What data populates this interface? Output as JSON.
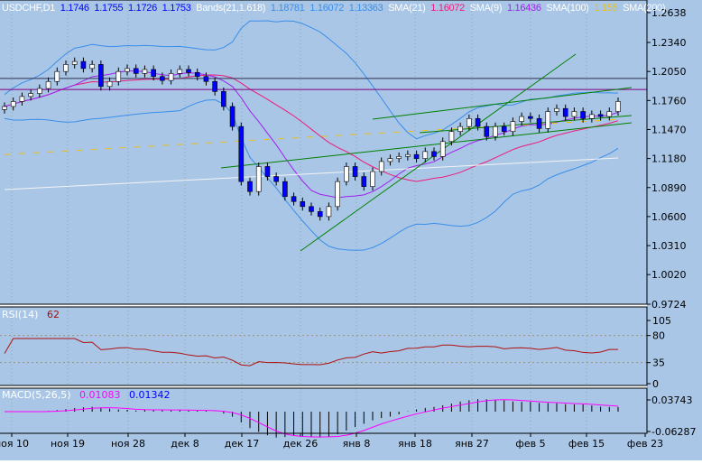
{
  "chart_data": {
    "type": "candlestick",
    "symbol": "USDCHF,D1",
    "ohlc_header": [
      "1.1746",
      "1.1755",
      "1.1726",
      "1.1753"
    ],
    "indicators": {
      "bands": {
        "label": "Bands(21,1.618)",
        "values": [
          "1.18781",
          "1.16072",
          "1.13363"
        ]
      },
      "sma21": {
        "label": "SMA(21)",
        "value": "1.16072"
      },
      "sma9": {
        "label": "SMA(9)",
        "value": "1.16436"
      },
      "sma100": {
        "label": "SMA(100)",
        "value": "1.155"
      },
      "sma200": {
        "label": "SMA(200)",
        "value": ""
      }
    },
    "price_axis": [
      "1.2638",
      "1.2340",
      "1.2050",
      "1.1760",
      "1.1470",
      "1.1180",
      "1.0890",
      "1.0600",
      "1.0310",
      "1.0020",
      "0.9724"
    ],
    "price_range": [
      0.9724,
      1.2638
    ],
    "x_labels": [
      "ноя 10",
      "ноя 19",
      "ноя 28",
      "дек 8",
      "дек 17",
      "дек 26",
      "янв 8",
      "янв 18",
      "янв 27",
      "фев 5",
      "фев 15",
      "фев 23"
    ],
    "closes": [
      1.17,
      1.175,
      1.18,
      1.183,
      1.188,
      1.195,
      1.205,
      1.212,
      1.215,
      1.208,
      1.212,
      1.19,
      1.195,
      1.205,
      1.208,
      1.203,
      1.207,
      1.2,
      1.196,
      1.203,
      1.207,
      1.204,
      1.2,
      1.195,
      1.185,
      1.17,
      1.15,
      1.095,
      1.085,
      1.11,
      1.1,
      1.095,
      1.08,
      1.075,
      1.07,
      1.065,
      1.06,
      1.07,
      1.095,
      1.11,
      1.1,
      1.09,
      1.105,
      1.115,
      1.118,
      1.12,
      1.122,
      1.118,
      1.125,
      1.12,
      1.135,
      1.145,
      1.15,
      1.158,
      1.15,
      1.14,
      1.15,
      1.145,
      1.155,
      1.16,
      1.158,
      1.148,
      1.165,
      1.168,
      1.16,
      1.165,
      1.158,
      1.162,
      1.16,
      1.165,
      1.175
    ],
    "horizontal_lines": [
      1.198,
      1.187
    ],
    "rsi": {
      "label": "RSI(14)",
      "value": "62",
      "axis": [
        "105",
        "80",
        "35",
        "0"
      ],
      "levels": [
        80,
        35
      ]
    },
    "macd": {
      "label": "MACD(5,26,5)",
      "values": [
        "0.01083",
        "0.01342"
      ],
      "axis": [
        "0.03743",
        "-0.06287"
      ]
    }
  },
  "colors": {
    "bg": "#a9c6e6",
    "bull": "#ffffff",
    "bear": "#0000ff",
    "bands": "#3a8ee8",
    "sma21": "#ee1a7a",
    "sma9": "#a020f0",
    "sma100": "#f0c000",
    "sma200": "#f4f4f4",
    "trend": "#008000"
  }
}
